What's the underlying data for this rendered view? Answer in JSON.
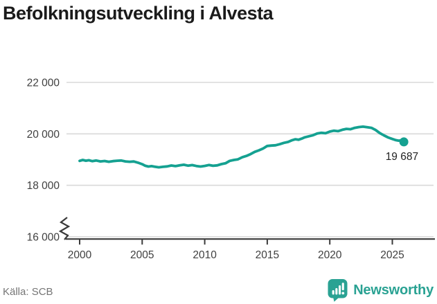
{
  "title": "Befolkningsutveckling i Alvesta",
  "source": {
    "label": "Källa: SCB"
  },
  "logo": {
    "text": "Newsworthy",
    "icon": "speech-bubble-bar-chart"
  },
  "colors": {
    "line": "#15a191",
    "grid": "#d9d9d9",
    "axis": "#3a3a3a",
    "tick_text": "#3f3f3f",
    "annotation_text": "#222222",
    "source_text": "#757575",
    "logo_teal": "#2aa293",
    "title_text": "#1b1b1b"
  },
  "chart_data": {
    "type": "line",
    "title": "Befolkningsutveckling i Alvesta",
    "xlabel": "",
    "ylabel": "",
    "grid": "horizontal",
    "legend": "none",
    "x_axis": {
      "ticks": [
        2000,
        2005,
        2010,
        2015,
        2020,
        2025
      ],
      "range": [
        1999.6,
        2026.3
      ],
      "axis_break_at_origin": true
    },
    "y_axis": {
      "ticks": [
        {
          "label": "22 000",
          "value": 22000
        },
        {
          "label": "20 000",
          "value": 20000
        },
        {
          "label": "18 000",
          "value": 18000
        },
        {
          "label": "16 000",
          "value": 16000
        }
      ],
      "range": [
        16000,
        22400
      ]
    },
    "series": [
      {
        "end_label": "19 687",
        "end_value": 19687,
        "points": [
          [
            2000.0,
            18950
          ],
          [
            2000.25,
            18985
          ],
          [
            2000.5,
            18955
          ],
          [
            2000.75,
            18975
          ],
          [
            2001.0,
            18940
          ],
          [
            2001.33,
            18965
          ],
          [
            2001.66,
            18930
          ],
          [
            2002.0,
            18945
          ],
          [
            2002.33,
            18915
          ],
          [
            2002.66,
            18940
          ],
          [
            2003.0,
            18955
          ],
          [
            2003.33,
            18965
          ],
          [
            2003.66,
            18930
          ],
          [
            2004.0,
            18915
          ],
          [
            2004.33,
            18925
          ],
          [
            2004.66,
            18880
          ],
          [
            2005.0,
            18820
          ],
          [
            2005.25,
            18760
          ],
          [
            2005.5,
            18730
          ],
          [
            2005.75,
            18745
          ],
          [
            2006.0,
            18725
          ],
          [
            2006.33,
            18700
          ],
          [
            2006.66,
            18720
          ],
          [
            2007.0,
            18735
          ],
          [
            2007.33,
            18770
          ],
          [
            2007.66,
            18745
          ],
          [
            2008.0,
            18775
          ],
          [
            2008.33,
            18800
          ],
          [
            2008.66,
            18765
          ],
          [
            2009.0,
            18785
          ],
          [
            2009.33,
            18750
          ],
          [
            2009.66,
            18730
          ],
          [
            2010.0,
            18755
          ],
          [
            2010.33,
            18790
          ],
          [
            2010.66,
            18760
          ],
          [
            2011.0,
            18775
          ],
          [
            2011.33,
            18825
          ],
          [
            2011.66,
            18855
          ],
          [
            2012.0,
            18950
          ],
          [
            2012.33,
            18985
          ],
          [
            2012.66,
            19010
          ],
          [
            2013.0,
            19090
          ],
          [
            2013.33,
            19140
          ],
          [
            2013.66,
            19210
          ],
          [
            2014.0,
            19300
          ],
          [
            2014.33,
            19360
          ],
          [
            2014.66,
            19430
          ],
          [
            2015.0,
            19530
          ],
          [
            2015.33,
            19545
          ],
          [
            2015.66,
            19555
          ],
          [
            2016.0,
            19600
          ],
          [
            2016.33,
            19650
          ],
          [
            2016.66,
            19685
          ],
          [
            2017.0,
            19755
          ],
          [
            2017.25,
            19790
          ],
          [
            2017.5,
            19770
          ],
          [
            2017.75,
            19815
          ],
          [
            2018.0,
            19865
          ],
          [
            2018.33,
            19905
          ],
          [
            2018.66,
            19945
          ],
          [
            2019.0,
            20015
          ],
          [
            2019.33,
            20040
          ],
          [
            2019.66,
            20025
          ],
          [
            2020.0,
            20090
          ],
          [
            2020.33,
            20125
          ],
          [
            2020.66,
            20105
          ],
          [
            2021.0,
            20160
          ],
          [
            2021.33,
            20195
          ],
          [
            2021.66,
            20180
          ],
          [
            2022.0,
            20235
          ],
          [
            2022.33,
            20265
          ],
          [
            2022.66,
            20280
          ],
          [
            2023.0,
            20255
          ],
          [
            2023.33,
            20235
          ],
          [
            2023.66,
            20150
          ],
          [
            2024.0,
            20030
          ],
          [
            2024.33,
            19940
          ],
          [
            2024.66,
            19860
          ],
          [
            2025.0,
            19800
          ],
          [
            2025.25,
            19760
          ],
          [
            2025.5,
            19735
          ],
          [
            2025.7,
            19745
          ],
          [
            2025.92,
            19687
          ]
        ]
      }
    ]
  }
}
